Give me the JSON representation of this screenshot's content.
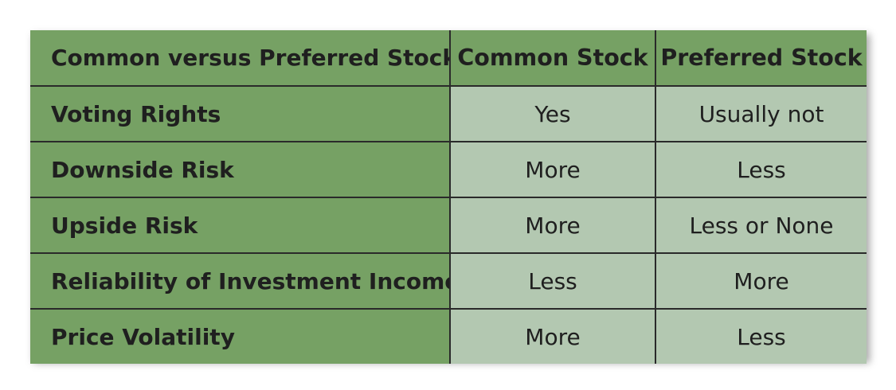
{
  "table": {
    "corner_label": "Common versus Preferred Stock",
    "columns": [
      "Common Stock",
      "Preferred Stock"
    ],
    "rows": [
      {
        "label": "Voting Rights",
        "values": [
          "Yes",
          "Usually not"
        ]
      },
      {
        "label": "Downside Risk",
        "values": [
          "More",
          "Less"
        ]
      },
      {
        "label": "Upside Risk",
        "values": [
          "More",
          "Less or None"
        ]
      },
      {
        "label": "Reliability of Investment Income",
        "values": [
          "Less",
          "More"
        ]
      },
      {
        "label": "Price Volatility",
        "values": [
          "More",
          "Less"
        ]
      }
    ]
  },
  "colors": {
    "header_green": "#76a164",
    "cell_green": "#b3c8b1",
    "border": "#2a2a2a"
  }
}
